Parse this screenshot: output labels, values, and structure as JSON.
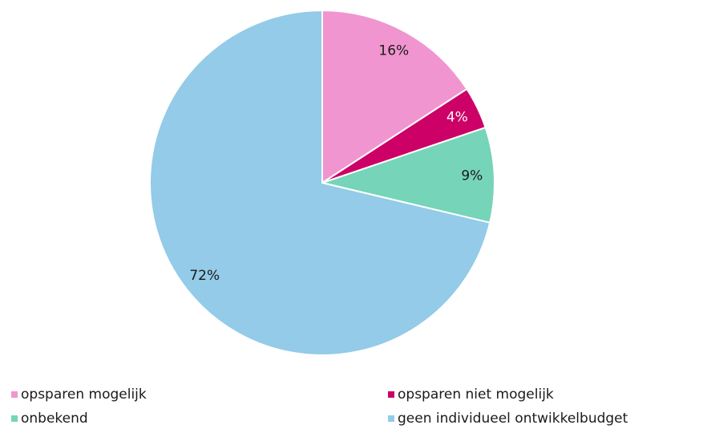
{
  "chart_data": {
    "type": "pie",
    "categories": [
      "opsparen mogelijk",
      "opsparen niet mogelijk",
      "onbekend",
      "geen individueel ontwikkelbudget"
    ],
    "values": [
      16,
      4,
      9,
      72
    ],
    "value_labels": [
      "16%",
      "4%",
      "9%",
      "72%"
    ],
    "colors": [
      "#f095d0",
      "#cc0066",
      "#76d4b8",
      "#93cbe8"
    ],
    "label_colors": [
      "#1a1a1a",
      "#ffffff",
      "#1a1a1a",
      "#1a1a1a"
    ],
    "legend": "bottom"
  }
}
